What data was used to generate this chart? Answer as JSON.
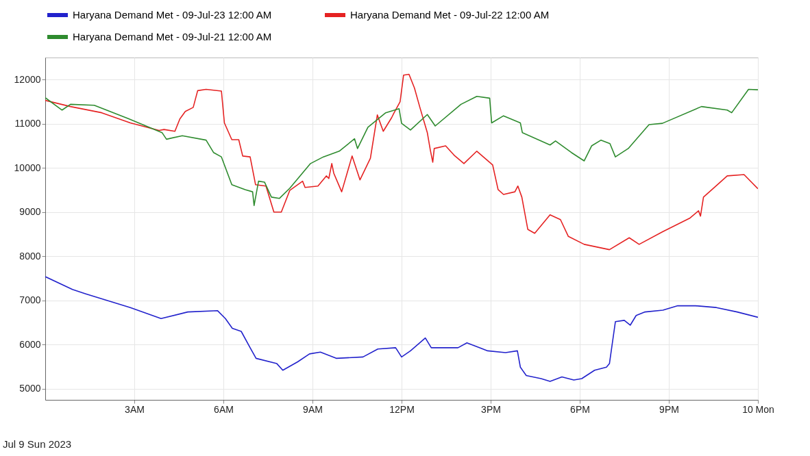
{
  "chart_data": {
    "type": "line",
    "series": [
      {
        "name": "Haryana Demand Met - 09-Jul-23  12:00 AM",
        "color": "#2222cc",
        "x": [
          "2023-07-09T00:00",
          "2023-07-09T00:55",
          "2023-07-09T01:22",
          "2023-07-09T02:52",
          "2023-07-09T03:54",
          "2023-07-09T04:48",
          "2023-07-09T05:48",
          "2023-07-09T06:04",
          "2023-07-09T06:18",
          "2023-07-09T06:36",
          "2023-07-09T06:54",
          "2023-07-09T07:06",
          "2023-07-09T07:48",
          "2023-07-09T08:00",
          "2023-07-09T08:30",
          "2023-07-09T08:54",
          "2023-07-09T09:16",
          "2023-07-09T09:48",
          "2023-07-09T10:42",
          "2023-07-09T11:12",
          "2023-07-09T11:48",
          "2023-07-09T12:00",
          "2023-07-09T12:18",
          "2023-07-09T12:48",
          "2023-07-09T13:00",
          "2023-07-09T13:54",
          "2023-07-09T14:12",
          "2023-07-09T14:54",
          "2023-07-09T15:30",
          "2023-07-09T15:54",
          "2023-07-09T16:00",
          "2023-07-09T16:12",
          "2023-07-09T16:42",
          "2023-07-09T17:00",
          "2023-07-09T17:24",
          "2023-07-09T17:48",
          "2023-07-09T18:04",
          "2023-07-09T18:30",
          "2023-07-09T18:54",
          "2023-07-09T19:00",
          "2023-07-09T19:12",
          "2023-07-09T19:30",
          "2023-07-09T19:42",
          "2023-07-09T19:54",
          "2023-07-09T20:12",
          "2023-07-09T20:48",
          "2023-07-09T21:18",
          "2023-07-09T21:54",
          "2023-07-09T22:36",
          "2023-07-09T23:18",
          "2023-07-10T00:00"
        ],
        "values": [
          7540,
          7250,
          7150,
          6840,
          6590,
          6740,
          6770,
          6590,
          6370,
          6300,
          5930,
          5690,
          5570,
          5420,
          5610,
          5790,
          5830,
          5690,
          5720,
          5900,
          5930,
          5720,
          5860,
          6150,
          5930,
          5930,
          6040,
          5860,
          5820,
          5860,
          5490,
          5300,
          5230,
          5170,
          5270,
          5200,
          5230,
          5420,
          5490,
          5570,
          6520,
          6550,
          6440,
          6660,
          6740,
          6780,
          6880,
          6880,
          6840,
          6740,
          6620
        ]
      },
      {
        "name": "Haryana Demand Met - 09-Jul-22  12:00 AM",
        "color": "#e52222",
        "x": [
          "2023-07-09T00:00",
          "2023-07-09T00:51",
          "2023-07-09T01:54",
          "2023-07-09T02:52",
          "2023-07-09T03:50",
          "2023-07-09T04:00",
          "2023-07-09T04:22",
          "2023-07-09T04:32",
          "2023-07-09T04:43",
          "2023-07-09T04:59",
          "2023-07-09T05:08",
          "2023-07-09T05:25",
          "2023-07-09T05:56",
          "2023-07-09T06:02",
          "2023-07-09T06:17",
          "2023-07-09T06:31",
          "2023-07-09T06:39",
          "2023-07-09T06:54",
          "2023-07-09T07:05",
          "2023-07-09T07:26",
          "2023-07-09T07:42",
          "2023-07-09T07:57",
          "2023-07-09T08:14",
          "2023-07-09T08:40",
          "2023-07-09T08:45",
          "2023-07-09T09:11",
          "2023-07-09T09:28",
          "2023-07-09T09:33",
          "2023-07-09T09:39",
          "2023-07-09T09:43",
          "2023-07-09T09:59",
          "2023-07-09T10:20",
          "2023-07-09T10:36",
          "2023-07-09T10:57",
          "2023-07-09T11:11",
          "2023-07-09T11:23",
          "2023-07-09T11:40",
          "2023-07-09T11:44",
          "2023-07-09T11:57",
          "2023-07-09T12:04",
          "2023-07-09T12:15",
          "2023-07-09T12:26",
          "2023-07-09T12:37",
          "2023-07-09T12:52",
          "2023-07-09T12:58",
          "2023-07-09T13:03",
          "2023-07-09T13:06",
          "2023-07-09T13:29",
          "2023-07-09T13:46",
          "2023-07-09T14:06",
          "2023-07-09T14:32",
          "2023-07-09T15:04",
          "2023-07-09T15:15",
          "2023-07-09T15:26",
          "2023-07-09T15:49",
          "2023-07-09T15:55",
          "2023-07-09T16:03",
          "2023-07-09T16:15",
          "2023-07-09T16:29",
          "2023-07-09T17:00",
          "2023-07-09T17:21",
          "2023-07-09T17:37",
          "2023-07-09T18:09",
          "2023-07-09T19:00",
          "2023-07-09T19:40",
          "2023-07-09T20:00",
          "2023-07-09T20:48",
          "2023-07-09T21:42",
          "2023-07-09T22:00",
          "2023-07-09T22:04",
          "2023-07-09T22:10",
          "2023-07-09T22:38",
          "2023-07-09T22:58",
          "2023-07-09T23:32",
          "2023-07-10T00:00"
        ],
        "values": [
          11530,
          11390,
          11250,
          11020,
          10850,
          10870,
          10830,
          11110,
          11280,
          11370,
          11750,
          11780,
          11740,
          11020,
          10640,
          10640,
          10270,
          10250,
          9620,
          9590,
          9000,
          9000,
          9490,
          9700,
          9560,
          9590,
          9820,
          9760,
          10100,
          9880,
          9460,
          10270,
          9730,
          10220,
          11200,
          10830,
          11140,
          11230,
          11500,
          12100,
          12120,
          11810,
          11370,
          10800,
          10410,
          10130,
          10440,
          10500,
          10290,
          10100,
          10380,
          10070,
          9510,
          9400,
          9460,
          9590,
          9340,
          8610,
          8520,
          8940,
          8830,
          8450,
          8270,
          8150,
          8420,
          8270,
          8560,
          8860,
          9030,
          8910,
          9340,
          9620,
          9820,
          9850,
          9530
        ]
      },
      {
        "name": "Haryana Demand Met - 09-Jul-21  12:00 AM",
        "color": "#2e8b2e",
        "x": [
          "2023-07-09T00:00",
          "2023-07-09T00:34",
          "2023-07-09T00:51",
          "2023-07-09T01:39",
          "2023-07-09T02:47",
          "2023-07-09T03:56",
          "2023-07-09T04:05",
          "2023-07-09T04:37",
          "2023-07-09T05:25",
          "2023-07-09T05:40",
          "2023-07-09T05:56",
          "2023-07-09T06:17",
          "2023-07-09T06:44",
          "2023-07-09T06:59",
          "2023-07-09T07:02",
          "2023-07-09T07:11",
          "2023-07-09T07:23",
          "2023-07-09T07:37",
          "2023-07-09T07:53",
          "2023-07-09T08:14",
          "2023-07-09T08:56",
          "2023-07-09T09:22",
          "2023-07-09T09:54",
          "2023-07-09T10:25",
          "2023-07-09T10:31",
          "2023-07-09T10:52",
          "2023-07-09T11:28",
          "2023-07-09T11:55",
          "2023-07-09T12:00",
          "2023-07-09T12:18",
          "2023-07-09T12:52",
          "2023-07-09T13:08",
          "2023-07-09T14:00",
          "2023-07-09T14:32",
          "2023-07-09T14:58",
          "2023-07-09T15:02",
          "2023-07-09T15:26",
          "2023-07-09T16:00",
          "2023-07-09T16:04",
          "2023-07-09T17:00",
          "2023-07-09T17:11",
          "2023-07-09T17:43",
          "2023-07-09T18:09",
          "2023-07-09T18:24",
          "2023-07-09T18:43",
          "2023-07-09T19:01",
          "2023-07-09T19:12",
          "2023-07-09T19:38",
          "2023-07-09T20:20",
          "2023-07-09T20:47",
          "2023-07-09T22:06",
          "2023-07-09T22:58",
          "2023-07-09T23:07",
          "2023-07-09T23:41",
          "2023-07-10T00:00"
        ],
        "values": [
          11590,
          11310,
          11440,
          11420,
          11120,
          10800,
          10650,
          10730,
          10630,
          10350,
          10250,
          9620,
          9510,
          9460,
          9150,
          9700,
          9680,
          9340,
          9310,
          9540,
          10100,
          10250,
          10380,
          10660,
          10440,
          10920,
          11250,
          11340,
          11010,
          10860,
          11210,
          10950,
          11440,
          11620,
          11580,
          11020,
          11180,
          11020,
          10800,
          10520,
          10610,
          10350,
          10160,
          10500,
          10630,
          10550,
          10250,
          10440,
          10980,
          11010,
          11390,
          11310,
          11250,
          11780,
          11770
        ]
      }
    ],
    "xlim": [
      "2023-07-09T00:00",
      "2023-07-10T00:00"
    ],
    "xticks": [
      {
        "value": "2023-07-09T03:00",
        "label": "3AM"
      },
      {
        "value": "2023-07-09T06:00",
        "label": "6AM"
      },
      {
        "value": "2023-07-09T09:00",
        "label": "9AM"
      },
      {
        "value": "2023-07-09T12:00",
        "label": "12PM"
      },
      {
        "value": "2023-07-09T15:00",
        "label": "3PM"
      },
      {
        "value": "2023-07-09T18:00",
        "label": "6PM"
      },
      {
        "value": "2023-07-09T21:00",
        "label": "9PM"
      },
      {
        "value": "2023-07-10T00:00",
        "label": "10 Mon"
      }
    ],
    "ylim": [
      4750,
      12500
    ],
    "yticks": [
      5000,
      6000,
      7000,
      8000,
      9000,
      10000,
      11000,
      12000
    ],
    "grid": true,
    "legend": "top",
    "annotations": [
      "Jul 9 Sun 2023"
    ]
  }
}
